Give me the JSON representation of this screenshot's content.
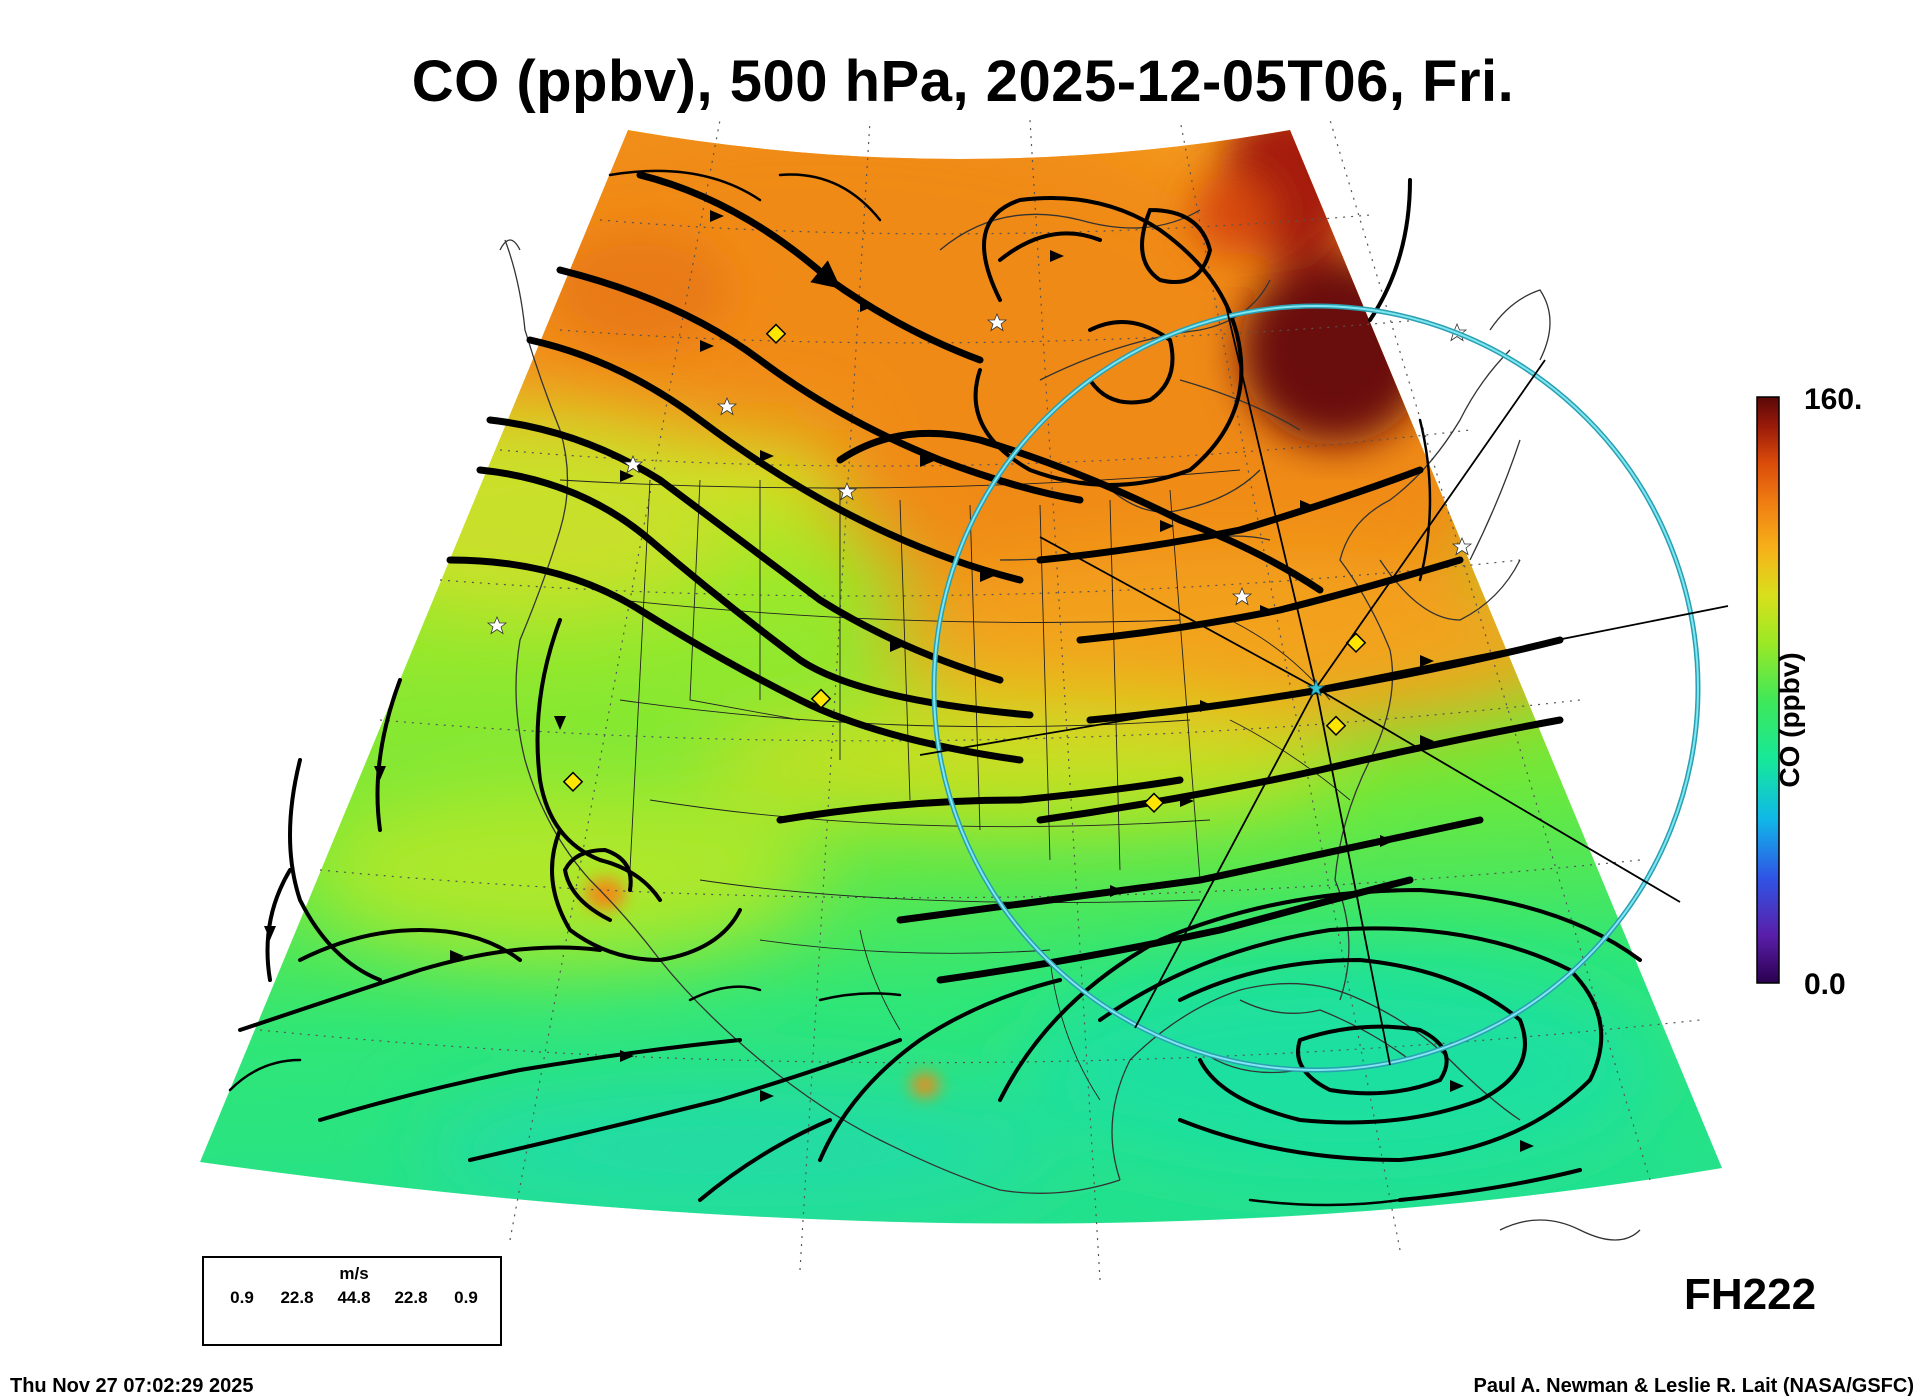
{
  "title": "CO (ppbv), 500 hPa, 2025-12-05T06, Fri.",
  "colorbar": {
    "label": "CO (ppbv)",
    "max_label": "160.",
    "min_label": "0.0",
    "range": [
      0,
      160
    ],
    "stops": [
      "#2a0050",
      "#5a1ea8",
      "#2f55e6",
      "#10b8e8",
      "#16e89a",
      "#3ee85a",
      "#9be825",
      "#d8e01c",
      "#f6b21a",
      "#f07d12",
      "#d94a0a",
      "#9a1a0a",
      "#5a0808"
    ]
  },
  "wind_legend": {
    "unit": "m/s",
    "ticks": [
      "0.9",
      "22.8",
      "44.8",
      "22.8",
      "0.9"
    ]
  },
  "forecast_hour": "FH222",
  "footer": {
    "timestamp": "Thu Nov 27 07:02:29 2025",
    "credit": "Paul A. Newman & Leslie R. Lait (NASA/GSFC)"
  },
  "colors": {
    "range_ring": "#34c3d6",
    "streamline": "#000000",
    "station_marker": "#ffe600"
  }
}
